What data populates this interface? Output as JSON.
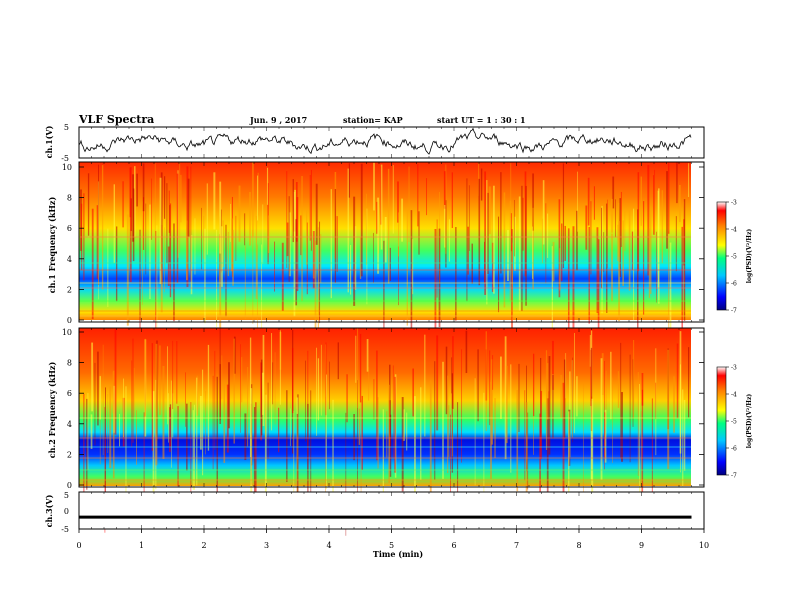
{
  "header": {
    "title": "VLF Spectra",
    "date": "Jun. 9 , 2017",
    "station": "station= KAP",
    "start": "start UT = 1 : 30 : 1"
  },
  "colorbar": {
    "label": "log(PSD)(V²/Hz)",
    "ticks": [
      "-3",
      "-4",
      "-5",
      "-6",
      "-7"
    ]
  },
  "chart_data": [
    {
      "type": "line",
      "panel": "ch.1 time series",
      "ylabel": "ch.1(V)",
      "ylim": [
        -5,
        5
      ],
      "yticks": [
        "5",
        "-5"
      ],
      "xlim": [
        0,
        10
      ],
      "description_values": "noisy waveform oscillating roughly between -3 and 3 V over 0-9.8 min"
    },
    {
      "type": "heatmap",
      "panel": "ch.1 spectrogram",
      "ylabel": "ch.1 Frequency (kHz)",
      "ylim": [
        0,
        10
      ],
      "yticks": [
        "0",
        "2",
        "4",
        "6",
        "8",
        "10"
      ],
      "xlim": [
        0,
        10
      ],
      "colorscale": "log(PSD) -7 (blue) to -3 (red)"
    },
    {
      "type": "heatmap",
      "panel": "ch.2 spectrogram",
      "ylabel": "ch.2 Frequency (kHz)",
      "ylim": [
        0,
        10
      ],
      "yticks": [
        "0",
        "2",
        "4",
        "6",
        "8",
        "10"
      ],
      "xlim": [
        0,
        10
      ],
      "colorscale": "log(PSD) -7 (blue) to -3 (red)"
    },
    {
      "type": "line",
      "panel": "ch.3 time series",
      "ylabel": "ch.3(V)",
      "ylim": [
        -5,
        5
      ],
      "yticks": [
        "5",
        "0",
        "-5"
      ],
      "xlim": [
        0,
        10
      ],
      "x": [
        0,
        9.8
      ],
      "y": [
        -1.8,
        -1.8
      ]
    }
  ],
  "xaxis": {
    "label": "Time (min)",
    "ticks": [
      "0",
      "1",
      "2",
      "3",
      "4",
      "5",
      "6",
      "7",
      "8",
      "9",
      "10"
    ]
  }
}
